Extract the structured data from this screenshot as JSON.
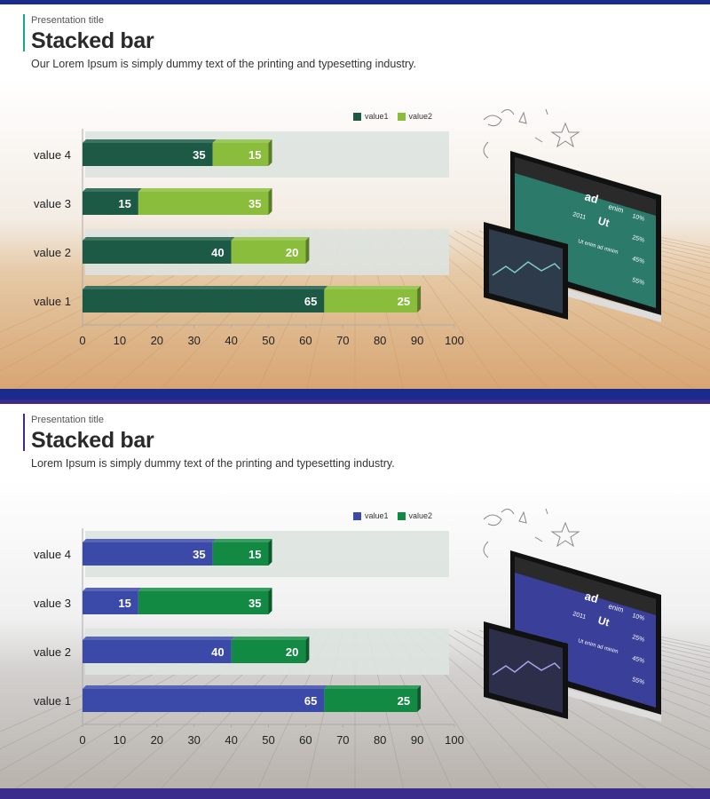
{
  "slides": [
    {
      "presentation_title": "Presentation title",
      "title": "Stacked bar",
      "subtitle": "Our Lorem Ipsum  is simply dummy  text of the printing and typesetting industry.",
      "colors": {
        "bar": "#1a2b8c",
        "accent": "#1aa58a",
        "series1": "#1c5a45",
        "series2": "#8bbd3c"
      },
      "monitor_text": {
        "header": "ad",
        "cell1": "enim",
        "cell2": "2011",
        "cell3": "Ut",
        "p1": "10%",
        "p2": "25%",
        "p3": "45%",
        "p4": "55%",
        "row": "Ut enim ad minim"
      },
      "chart_data": {
        "type": "bar",
        "orientation": "horizontal",
        "stacked": true,
        "categories": [
          "value 1",
          "value 2",
          "value 3",
          "value 4"
        ],
        "series": [
          {
            "name": "value1",
            "values": [
              65,
              40,
              15,
              35
            ]
          },
          {
            "name": "value2",
            "values": [
              25,
              20,
              35,
              15
            ]
          }
        ],
        "xlim": [
          0,
          100
        ],
        "xticks": [
          0,
          10,
          20,
          30,
          40,
          50,
          60,
          70,
          80,
          90,
          100
        ],
        "legend": "top"
      }
    },
    {
      "presentation_title": "Presentation title",
      "title": "Stacked bar",
      "subtitle": "Lorem Ipsum  is simply dummy  text of the printing and typesetting industry.",
      "colors": {
        "bar": "#3a2b8c",
        "accent": "#3a2b8c",
        "series1": "#3b4aa8",
        "series2": "#138a44"
      },
      "monitor_text": {
        "header": "ad",
        "cell1": "enim",
        "cell2": "2011",
        "cell3": "Ut",
        "p1": "10%",
        "p2": "25%",
        "p3": "45%",
        "p4": "55%",
        "row": "Ut enim ad minim"
      },
      "chart_data": {
        "type": "bar",
        "orientation": "horizontal",
        "stacked": true,
        "categories": [
          "value 1",
          "value 2",
          "value 3",
          "value 4"
        ],
        "series": [
          {
            "name": "value1",
            "values": [
              65,
              40,
              15,
              35
            ]
          },
          {
            "name": "value2",
            "values": [
              25,
              20,
              35,
              15
            ]
          }
        ],
        "xlim": [
          0,
          100
        ],
        "xticks": [
          0,
          10,
          20,
          30,
          40,
          50,
          60,
          70,
          80,
          90,
          100
        ],
        "legend": "top"
      }
    }
  ]
}
